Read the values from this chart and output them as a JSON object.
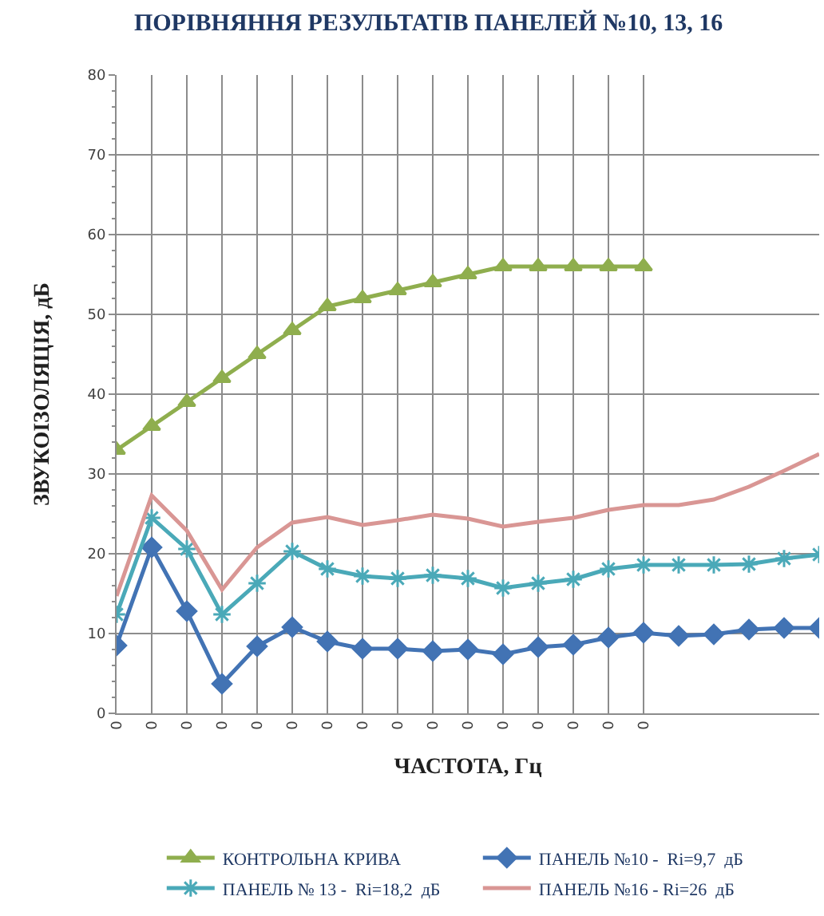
{
  "chart_data": {
    "type": "line",
    "title": "ПОРІВНЯННЯ РЕЗУЛЬТАТІВ ПАНЕЛЕЙ №10, 13, 16",
    "xlabel": "ЧАСТОТА, Гц",
    "ylabel": "ЗВУКОІЗОЛЯЦІЯ, дБ",
    "categories": [
      "0",
      "0",
      "0",
      "0",
      "0",
      "0",
      "0",
      "0",
      "0",
      "0",
      "0",
      "0",
      "0",
      "0",
      "0",
      "0",
      null,
      null,
      null,
      null,
      null
    ],
    "series": [
      {
        "name": "КОНТРОЛЬНА КРИВА",
        "color": "#8fae4e",
        "marker": "triangle",
        "values": [
          33,
          36,
          39,
          42,
          45,
          48,
          51,
          52,
          53,
          54,
          55,
          56,
          56,
          56,
          56,
          56,
          null,
          null,
          null,
          null,
          null
        ]
      },
      {
        "name": "ПАНЕЛЬ №10 -  Ri=9,7  дБ",
        "color": "#4273b4",
        "marker": "diamond",
        "values": [
          8.5,
          20.8,
          12.8,
          3.7,
          8.4,
          10.8,
          9.0,
          8.1,
          8.1,
          7.8,
          8.0,
          7.4,
          8.3,
          8.6,
          9.5,
          10.1,
          9.7,
          9.9,
          10.5,
          10.7,
          10.7
        ]
      },
      {
        "name": "ПАНЕЛЬ № 13 -  Ri=18,2  дБ",
        "color": "#4aa9b8",
        "marker": "cross",
        "values": [
          12.4,
          24.5,
          20.6,
          12.4,
          16.3,
          20.3,
          18.1,
          17.2,
          16.9,
          17.3,
          16.9,
          15.7,
          16.3,
          16.8,
          18.1,
          18.6,
          18.6,
          18.6,
          18.7,
          19.4,
          19.9
        ]
      },
      {
        "name": "ПАНЕЛЬ №16 - Ri=26  дБ",
        "color": "#d99694",
        "marker": "none",
        "values": [
          14.7,
          27.3,
          22.9,
          15.5,
          20.8,
          23.9,
          24.6,
          23.6,
          24.2,
          24.9,
          24.4,
          23.4,
          24.0,
          24.5,
          25.5,
          26.1,
          26.1,
          26.8,
          28.4,
          30.4,
          32.5
        ]
      }
    ],
    "ylim": [
      0,
      80
    ],
    "yticks": [
      0,
      10,
      20,
      30,
      40,
      50,
      60,
      70,
      80
    ],
    "grid": true,
    "legend": "bottom",
    "line_style": "solid"
  }
}
